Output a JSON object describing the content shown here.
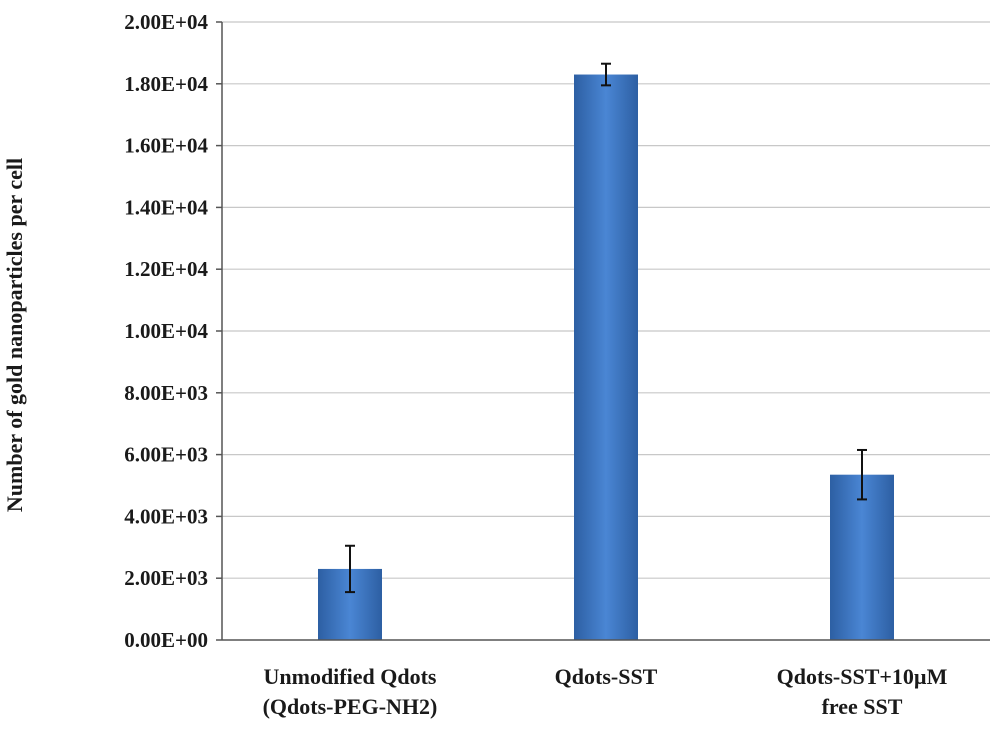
{
  "chart_data": {
    "type": "bar",
    "title": "",
    "xlabel": "",
    "ylabel": "Number of gold nanoparticles per cell",
    "categories": [
      [
        "Unmodified Qdots",
        "(Qdots-PEG-NH2)"
      ],
      [
        "Qdots-SST"
      ],
      [
        "Qdots-SST+10µM",
        "free SST"
      ]
    ],
    "values": [
      2300,
      18300,
      5350
    ],
    "error": [
      750,
      350,
      800
    ],
    "ylim": [
      0,
      20000
    ],
    "yticks": [
      0,
      2000,
      4000,
      6000,
      8000,
      10000,
      12000,
      14000,
      16000,
      18000,
      20000
    ],
    "ytick_labels": [
      "0.00E+00",
      "2.00E+03",
      "4.00E+03",
      "6.00E+03",
      "8.00E+03",
      "1.00E+04",
      "1.20E+04",
      "1.40E+04",
      "1.60E+04",
      "1.80E+04",
      "2.00E+04"
    ],
    "grid": true,
    "legend": "none",
    "colors": {
      "bar_light": "#4a86d4",
      "bar_dark": "#2d5fa3",
      "grid": "#c8c8c8",
      "axis": "#555555",
      "error": "#111111"
    }
  }
}
